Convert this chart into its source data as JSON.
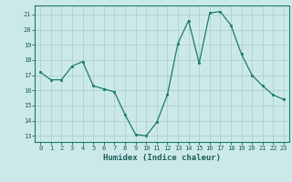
{
  "x": [
    0,
    1,
    2,
    3,
    4,
    5,
    6,
    7,
    8,
    9,
    10,
    11,
    12,
    13,
    14,
    15,
    16,
    17,
    18,
    19,
    20,
    21,
    22,
    23
  ],
  "y": [
    17.2,
    16.7,
    16.7,
    17.6,
    17.9,
    16.3,
    16.1,
    15.9,
    14.4,
    13.1,
    13.0,
    13.9,
    15.7,
    19.1,
    20.6,
    17.8,
    21.1,
    21.2,
    20.3,
    18.4,
    17.0,
    16.3,
    15.7,
    15.4
  ],
  "xlabel": "Humidex (Indice chaleur)",
  "ylim": [
    12.6,
    21.6
  ],
  "xlim": [
    -0.5,
    23.5
  ],
  "yticks": [
    13,
    14,
    15,
    16,
    17,
    18,
    19,
    20,
    21
  ],
  "xticks": [
    0,
    1,
    2,
    3,
    4,
    5,
    6,
    7,
    8,
    9,
    10,
    11,
    12,
    13,
    14,
    15,
    16,
    17,
    18,
    19,
    20,
    21,
    22,
    23
  ],
  "line_color": "#1a7a6e",
  "marker_color": "#1a7a6e",
  "bg_color": "#cce9e9",
  "grid_color": "#b0cfcf",
  "axis_color": "#1a7a6e",
  "tick_label_color": "#1a5f5a",
  "font_size": 6.5
}
